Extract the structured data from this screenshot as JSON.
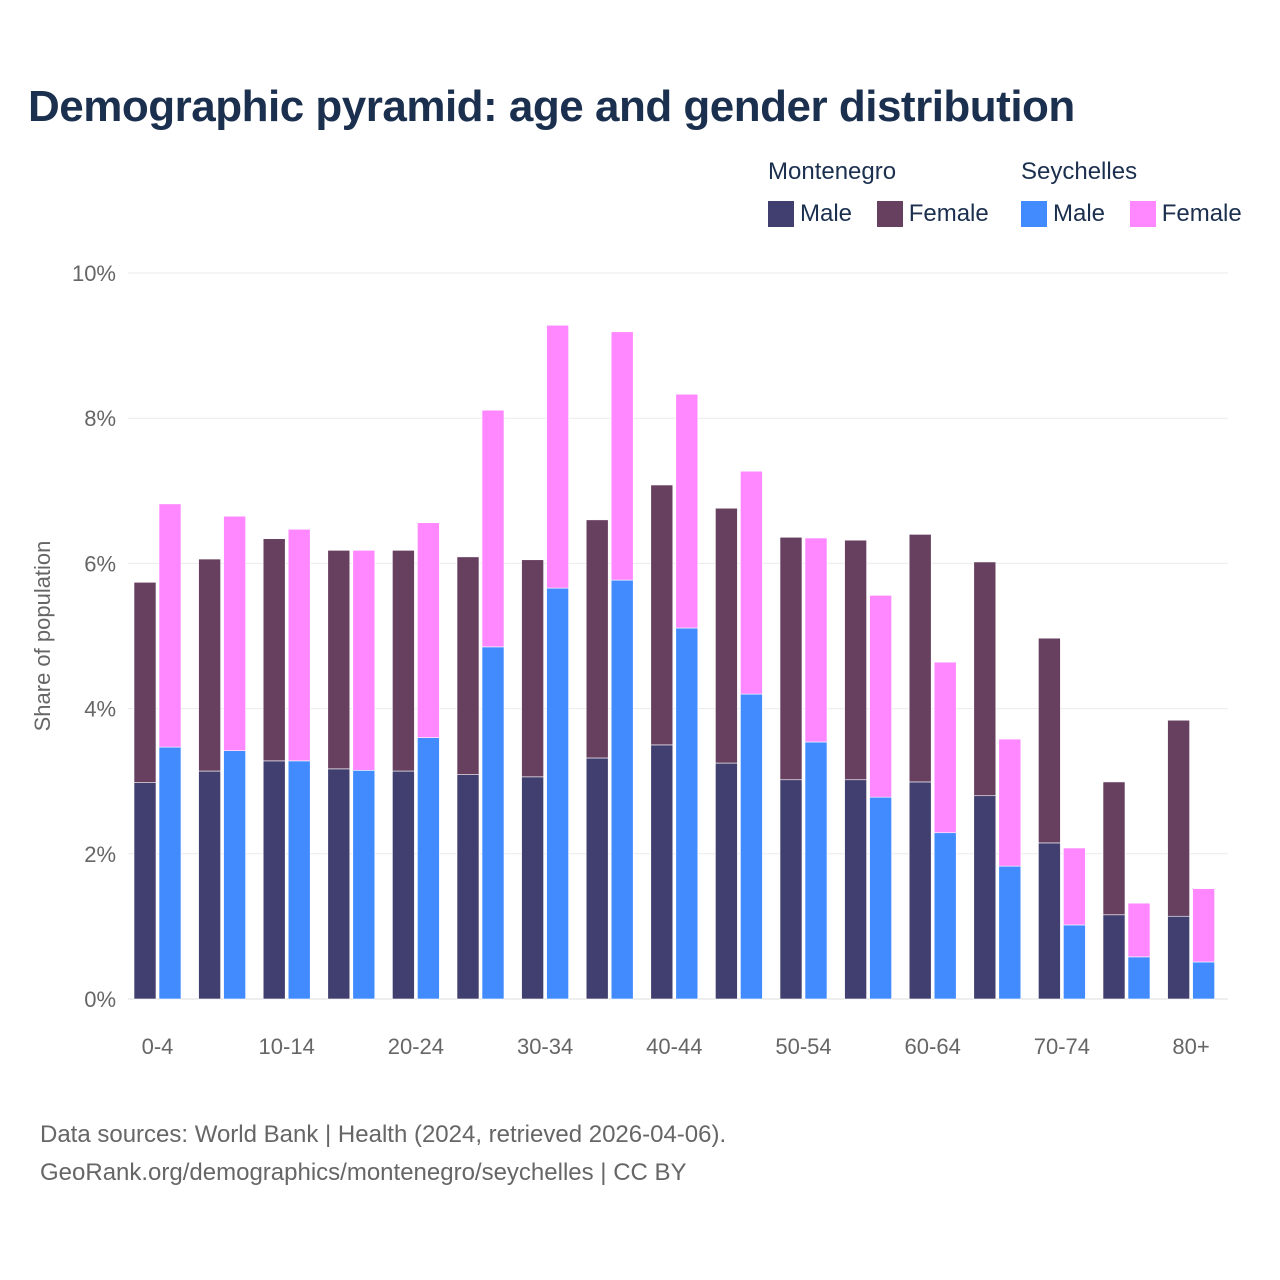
{
  "chart_data": {
    "type": "bar",
    "title": "Demographic pyramid: age and gender distribution",
    "ylabel": "Share of population",
    "xlabel": "",
    "ylim": [
      0,
      10
    ],
    "y_ticks": [
      "0%",
      "2%",
      "4%",
      "6%",
      "8%",
      "10%"
    ],
    "y_tick_values": [
      0,
      2,
      4,
      6,
      8,
      10
    ],
    "grid": true,
    "legend_placement": "top-right",
    "categories": [
      "0-4",
      "5-9",
      "10-14",
      "15-19",
      "20-24",
      "25-29",
      "30-34",
      "35-39",
      "40-44",
      "45-49",
      "50-54",
      "55-59",
      "60-64",
      "65-69",
      "70-74",
      "75-79",
      "80+"
    ],
    "x_tick_labels": [
      "0-4",
      "10-14",
      "20-24",
      "30-34",
      "40-44",
      "50-54",
      "60-64",
      "70-74",
      "80+"
    ],
    "countries": [
      {
        "name": "Montenegro",
        "series": [
          {
            "name": "Male",
            "color": "#403f6f",
            "values": [
              2.98,
              3.14,
              3.28,
              3.17,
              3.14,
              3.09,
              3.06,
              3.32,
              3.5,
              3.25,
              3.02,
              3.02,
              2.99,
              2.8,
              2.15,
              1.16,
              1.14
            ]
          },
          {
            "name": "Female",
            "color": "#673f5f",
            "values": [
              2.76,
              2.92,
              3.06,
              3.01,
              3.04,
              3.0,
              2.99,
              3.28,
              3.58,
              3.51,
              3.34,
              3.3,
              3.41,
              3.22,
              2.82,
              1.83,
              2.7
            ]
          }
        ]
      },
      {
        "name": "Seychelles",
        "series": [
          {
            "name": "Male",
            "color": "#418bff",
            "values": [
              3.47,
              3.42,
              3.28,
              3.15,
              3.6,
              4.85,
              5.66,
              5.77,
              5.11,
              4.2,
              3.54,
              2.78,
              2.29,
              1.83,
              1.02,
              0.58,
              0.51
            ]
          },
          {
            "name": "Female",
            "color": "#ff87ff",
            "values": [
              3.35,
              3.23,
              3.19,
              3.03,
              2.96,
              3.26,
              3.62,
              3.42,
              3.22,
              3.07,
              2.81,
              2.78,
              2.35,
              1.75,
              1.06,
              0.74,
              1.01
            ]
          }
        ]
      }
    ]
  },
  "footer": {
    "line1": "Data sources: World Bank | Health (2024, retrieved 2026-04-06).",
    "line2": "GeoRank.org/demographics/montenegro/seychelles | CC BY"
  }
}
